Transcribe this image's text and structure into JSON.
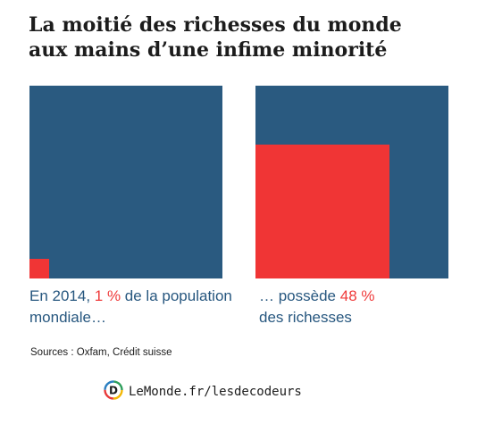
{
  "title": {
    "line1": "La moitié des richesses du monde",
    "line2": "aux mains d’une infime minorité"
  },
  "chart_data": {
    "type": "area",
    "panels": [
      {
        "name": "population",
        "share_percent": 1,
        "caption_before": "En 2014, ",
        "caption_highlight": "1 %",
        "caption_after": " de la population mondiale…"
      },
      {
        "name": "richesses",
        "share_percent": 48,
        "caption_before": "… possède ",
        "caption_highlight": "48 %",
        "caption_after": " des richesses"
      }
    ],
    "colors": {
      "total": "#2a5a80",
      "share": "#f03535"
    }
  },
  "source": "Sources : Oxfam, Crédit suisse",
  "brand": {
    "logo_icon": "decodeurs-logo-icon",
    "url": "LeMonde.fr/lesdecodeurs"
  }
}
